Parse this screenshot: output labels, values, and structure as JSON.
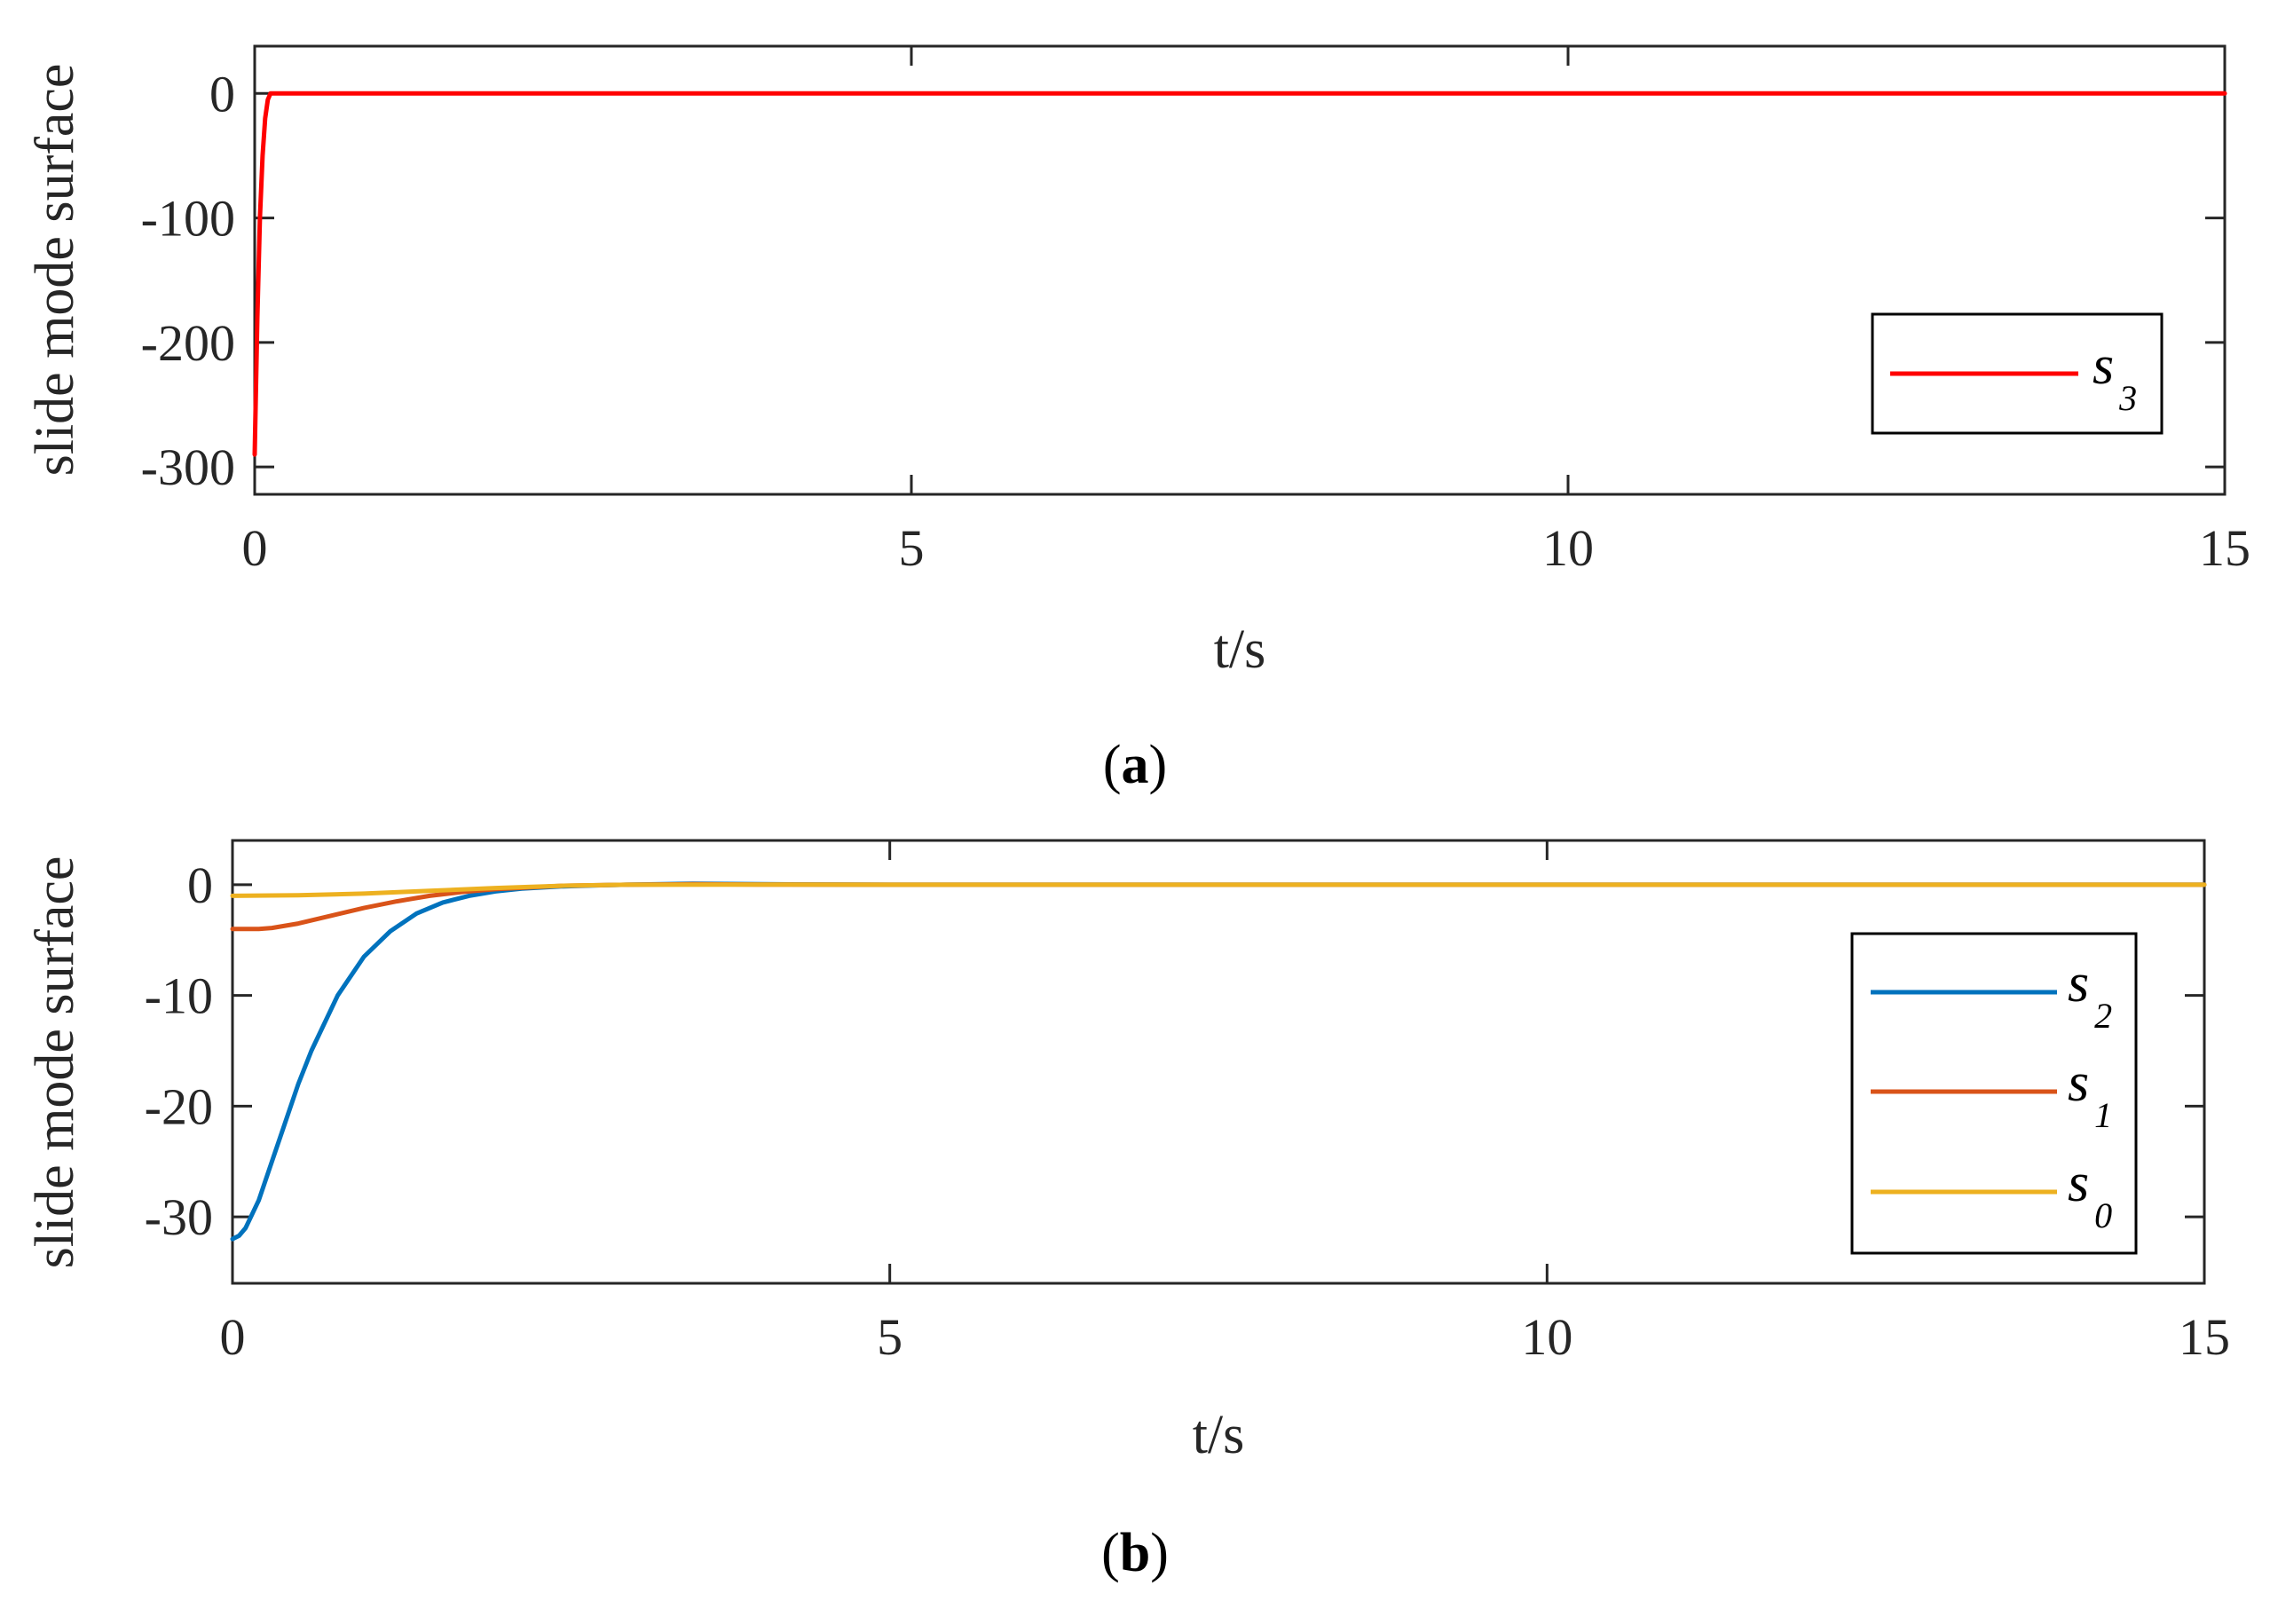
{
  "chart_data": [
    {
      "type": "line",
      "panel_label": "a",
      "xlabel": "t/s",
      "ylabel": "slide mode surface",
      "xlim": [
        0,
        15
      ],
      "ylim": [
        -322,
        38
      ],
      "xticks": [
        0,
        5,
        10,
        15
      ],
      "yticks": [
        0,
        -100,
        -200,
        -300
      ],
      "grid": false,
      "legend_position": "lower-right",
      "series": [
        {
          "name": "s",
          "subscript": "3",
          "color": "#ff0000",
          "x": [
            0,
            0.02,
            0.04,
            0.06,
            0.08,
            0.1,
            0.12,
            0.15,
            0.2,
            0.5,
            1,
            2,
            5,
            10,
            15
          ],
          "y": [
            -290,
            -180,
            -100,
            -50,
            -20,
            -5,
            0,
            0,
            0,
            0,
            0,
            0,
            0,
            0,
            0
          ]
        }
      ]
    },
    {
      "type": "line",
      "panel_label": "b",
      "xlabel": "t/s",
      "ylabel": "slide mode surface",
      "xlim": [
        0,
        15
      ],
      "ylim": [
        -36,
        4
      ],
      "xticks": [
        0,
        5,
        10,
        15
      ],
      "yticks": [
        0,
        -10,
        -20,
        -30
      ],
      "grid": false,
      "legend_position": "right",
      "series": [
        {
          "name": "s",
          "subscript": "2",
          "color": "#0072bd",
          "x": [
            0,
            0.05,
            0.1,
            0.2,
            0.3,
            0.4,
            0.5,
            0.6,
            0.8,
            1.0,
            1.2,
            1.4,
            1.6,
            1.8,
            2.0,
            2.2,
            2.5,
            2.8,
            3.0,
            3.5,
            4,
            5,
            8,
            10,
            15
          ],
          "y": [
            -32,
            -31.7,
            -31,
            -28.5,
            -25,
            -21.5,
            -18,
            -15,
            -10,
            -6.5,
            -4.2,
            -2.6,
            -1.6,
            -1,
            -0.6,
            -0.35,
            -0.15,
            -0.05,
            0,
            0.1,
            0.05,
            0,
            0,
            0,
            0
          ]
        },
        {
          "name": "s",
          "subscript": "1",
          "color": "#d95319",
          "x": [
            0,
            0.2,
            0.3,
            0.5,
            0.75,
            1.0,
            1.25,
            1.5,
            1.75,
            2.0,
            2.25,
            2.5,
            3,
            3.5,
            4,
            5,
            10,
            15
          ],
          "y": [
            -4,
            -4,
            -3.9,
            -3.5,
            -2.8,
            -2.1,
            -1.5,
            -1,
            -0.65,
            -0.4,
            -0.25,
            -0.1,
            0,
            0.05,
            0.02,
            0,
            0,
            0
          ]
        },
        {
          "name": "s",
          "subscript": "0",
          "color": "#edb120",
          "x": [
            0,
            0.5,
            1,
            1.5,
            2,
            2.5,
            3,
            4,
            5,
            10,
            15
          ],
          "y": [
            -1,
            -0.95,
            -0.8,
            -0.55,
            -0.3,
            -0.1,
            0,
            0.02,
            0,
            0,
            0
          ]
        }
      ]
    }
  ]
}
